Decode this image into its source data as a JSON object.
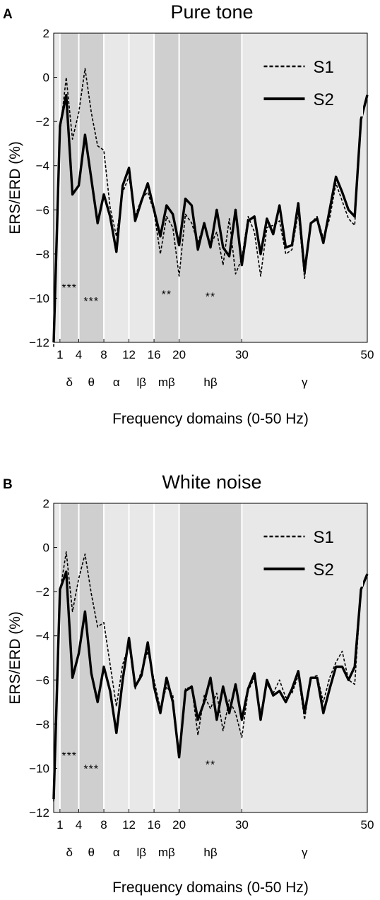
{
  "chart_data": [
    {
      "panel": "A",
      "type": "line",
      "title": "Pure tone",
      "xlabel": "Frequency domains (0-50 Hz)",
      "ylabel": "ERS/ERD (%)",
      "xlim": [
        0,
        50
      ],
      "ylim": [
        -12,
        2
      ],
      "xticks": [
        1,
        4,
        8,
        12,
        16,
        20,
        30,
        50
      ],
      "yticks": [
        2,
        0,
        -2,
        -4,
        -6,
        -8,
        -10,
        -12
      ],
      "legend_position": "top-right",
      "bands": [
        {
          "label": "δ",
          "from": 1,
          "to": 4,
          "shade": "#cfcfcf"
        },
        {
          "label": "θ",
          "from": 4,
          "to": 8,
          "shade": "#cfcfcf"
        },
        {
          "label": "α",
          "from": 8,
          "to": 12,
          "shade": "#e8e8e8"
        },
        {
          "label": "lβ",
          "from": 12,
          "to": 16,
          "shade": "#e8e8e8"
        },
        {
          "label": "mβ",
          "from": 16,
          "to": 20,
          "shade": "#cfcfcf"
        },
        {
          "label": "hβ",
          "from": 20,
          "to": 30,
          "shade": "#cfcfcf"
        },
        {
          "label": "γ",
          "from": 30,
          "to": 50,
          "shade": "#e8e8e8"
        }
      ],
      "significance": [
        {
          "text": "***",
          "x": 2.5,
          "y": -9.7
        },
        {
          "text": "***",
          "x": 6,
          "y": -10.3
        },
        {
          "text": "**",
          "x": 18,
          "y": -10.0
        },
        {
          "text": "**",
          "x": 25,
          "y": -10.1
        }
      ],
      "x": [
        0,
        1,
        2,
        3,
        4,
        5,
        6,
        7,
        8,
        9,
        10,
        11,
        12,
        13,
        14,
        15,
        16,
        17,
        18,
        19,
        20,
        21,
        22,
        23,
        24,
        25,
        26,
        27,
        28,
        29,
        30,
        31,
        32,
        33,
        34,
        35,
        36,
        37,
        38,
        39,
        40,
        41,
        42,
        43,
        44,
        45,
        46,
        47,
        48,
        49,
        50
      ],
      "series": [
        {
          "name": "S1",
          "style": "dashed",
          "values": [
            -12.2,
            -2.5,
            0.0,
            -2.8,
            -1.6,
            0.4,
            -1.6,
            -3.1,
            -3.3,
            -5.9,
            -7.2,
            -5.2,
            -4.5,
            -6.3,
            -5.5,
            -5.2,
            -6.1,
            -8.0,
            -6.3,
            -6.8,
            -9.0,
            -6.2,
            -6.6,
            -7.5,
            -6.6,
            -7.6,
            -7.0,
            -8.5,
            -6.4,
            -8.9,
            -8.2,
            -6.3,
            -7.0,
            -9.0,
            -6.8,
            -6.7,
            -6.5,
            -8.0,
            -7.8,
            -6.1,
            -9.1,
            -6.6,
            -6.3,
            -7.3,
            -6.4,
            -4.8,
            -5.6,
            -6.4,
            -6.7,
            -1.9,
            -0.8
          ]
        },
        {
          "name": "S2",
          "style": "solid",
          "values": [
            -12.0,
            -2.2,
            -0.8,
            -5.3,
            -4.9,
            -2.6,
            -4.6,
            -6.6,
            -5.3,
            -6.3,
            -7.9,
            -4.9,
            -4.1,
            -6.5,
            -5.6,
            -4.8,
            -6.0,
            -7.2,
            -5.8,
            -6.2,
            -7.6,
            -5.5,
            -5.8,
            -7.8,
            -6.6,
            -7.7,
            -6.0,
            -7.7,
            -8.1,
            -6.0,
            -8.5,
            -6.5,
            -6.3,
            -8.0,
            -6.4,
            -7.1,
            -5.8,
            -7.7,
            -7.6,
            -5.7,
            -8.8,
            -6.6,
            -6.4,
            -7.5,
            -6.0,
            -4.5,
            -5.2,
            -6.0,
            -6.3,
            -1.9,
            -0.8
          ]
        }
      ]
    },
    {
      "panel": "B",
      "type": "line",
      "title": "White noise",
      "xlabel": "Frequency domains (0-50 Hz)",
      "ylabel": "ERS/ERD (%)",
      "xlim": [
        0,
        50
      ],
      "ylim": [
        -12,
        2
      ],
      "xticks": [
        1,
        4,
        8,
        12,
        16,
        20,
        30,
        50
      ],
      "yticks": [
        2,
        0,
        -2,
        -4,
        -6,
        -8,
        -10,
        -12
      ],
      "legend_position": "top-right",
      "bands": [
        {
          "label": "δ",
          "from": 1,
          "to": 4,
          "shade": "#cfcfcf"
        },
        {
          "label": "θ",
          "from": 4,
          "to": 8,
          "shade": "#cfcfcf"
        },
        {
          "label": "α",
          "from": 8,
          "to": 12,
          "shade": "#e8e8e8"
        },
        {
          "label": "lβ",
          "from": 12,
          "to": 16,
          "shade": "#e8e8e8"
        },
        {
          "label": "mβ",
          "from": 16,
          "to": 20,
          "shade": "#e8e8e8"
        },
        {
          "label": "hβ",
          "from": 20,
          "to": 30,
          "shade": "#cfcfcf"
        },
        {
          "label": "γ",
          "from": 30,
          "to": 50,
          "shade": "#e8e8e8"
        }
      ],
      "significance": [
        {
          "text": "***",
          "x": 2.5,
          "y": -9.6
        },
        {
          "text": "***",
          "x": 6,
          "y": -10.2
        },
        {
          "text": "**",
          "x": 25,
          "y": -10.0
        }
      ],
      "x": [
        0,
        1,
        2,
        3,
        4,
        5,
        6,
        7,
        8,
        9,
        10,
        11,
        12,
        13,
        14,
        15,
        16,
        17,
        18,
        19,
        20,
        21,
        22,
        23,
        24,
        25,
        26,
        27,
        28,
        29,
        30,
        31,
        32,
        33,
        34,
        35,
        36,
        37,
        38,
        39,
        40,
        41,
        42,
        43,
        44,
        45,
        46,
        47,
        48,
        49,
        50
      ],
      "series": [
        {
          "name": "S1",
          "style": "dashed",
          "values": [
            -11.5,
            -2.0,
            -0.2,
            -2.9,
            -1.4,
            -0.3,
            -2.1,
            -3.6,
            -3.4,
            -5.3,
            -7.2,
            -5.3,
            -4.4,
            -6.4,
            -5.6,
            -4.7,
            -6.0,
            -7.3,
            -6.3,
            -6.7,
            -9.5,
            -6.4,
            -6.3,
            -8.5,
            -6.7,
            -7.3,
            -6.6,
            -8.3,
            -6.9,
            -7.5,
            -8.6,
            -6.5,
            -5.9,
            -7.5,
            -6.2,
            -6.6,
            -6.0,
            -6.8,
            -6.6,
            -5.8,
            -7.8,
            -5.9,
            -5.8,
            -7.0,
            -5.9,
            -5.2,
            -4.7,
            -6.0,
            -6.2,
            -1.9,
            -1.2
          ]
        },
        {
          "name": "S2",
          "style": "solid",
          "values": [
            -11.4,
            -1.9,
            -1.1,
            -5.9,
            -4.8,
            -2.9,
            -5.7,
            -7.0,
            -5.4,
            -6.5,
            -8.4,
            -6.0,
            -4.1,
            -6.3,
            -5.8,
            -4.3,
            -6.3,
            -7.5,
            -5.9,
            -7.0,
            -9.5,
            -6.5,
            -6.3,
            -7.8,
            -7.0,
            -5.9,
            -7.8,
            -6.3,
            -7.5,
            -6.2,
            -7.8,
            -6.4,
            -5.7,
            -7.8,
            -6.0,
            -6.7,
            -6.5,
            -7.0,
            -6.4,
            -5.6,
            -7.5,
            -5.9,
            -5.9,
            -7.5,
            -6.4,
            -5.4,
            -5.4,
            -6.0,
            -5.4,
            -1.9,
            -1.2
          ]
        }
      ]
    }
  ]
}
